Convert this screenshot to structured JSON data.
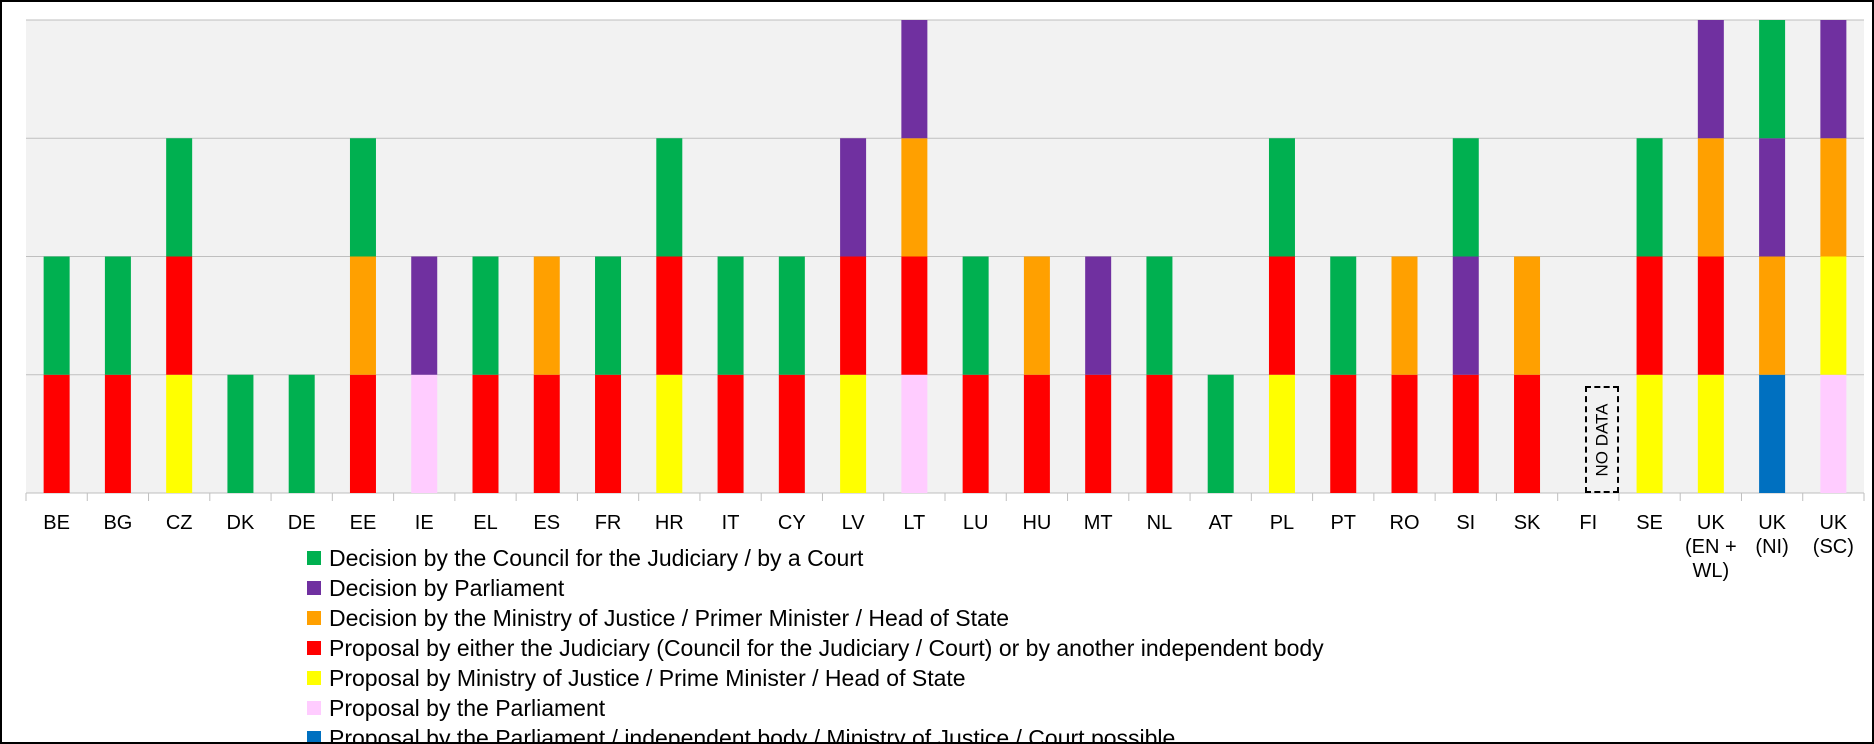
{
  "chart_data": {
    "type": "stacked_bar",
    "categories": [
      "BE",
      "BG",
      "CZ",
      "DK",
      "DE",
      "EE",
      "IE",
      "EL",
      "ES",
      "FR",
      "HR",
      "IT",
      "CY",
      "LV",
      "LT",
      "LU",
      "HU",
      "MT",
      "NL",
      "AT",
      "PL",
      "PT",
      "RO",
      "SI",
      "SK",
      "FI",
      "SE",
      "UK\n(EN +\nWL)",
      "UK\n(NI)",
      "UK\n(SC)"
    ],
    "series": [
      {
        "name": "Decision by the Council for the Judiciary / by a Court",
        "color": "#00b050",
        "values": [
          1,
          1,
          1,
          1,
          1,
          1,
          0,
          1,
          0,
          1,
          1,
          1,
          1,
          0,
          0,
          1,
          0,
          0,
          1,
          1,
          1,
          1,
          0,
          1,
          0,
          0,
          1,
          0,
          1,
          0
        ]
      },
      {
        "name": "Decision by Parliament",
        "color": "#7030a0",
        "values": [
          0,
          0,
          0,
          0,
          0,
          0,
          1,
          0,
          0,
          0,
          0,
          0,
          0,
          1,
          1,
          0,
          0,
          1,
          0,
          0,
          0,
          0,
          0,
          1,
          0,
          0,
          0,
          1,
          1,
          1
        ]
      },
      {
        "name": "Decision by the Ministry of Justice / Primer Minister / Head of State",
        "color": "#ffa000",
        "values": [
          0,
          0,
          0,
          0,
          0,
          1,
          0,
          0,
          1,
          0,
          0,
          0,
          0,
          0,
          1,
          0,
          1,
          0,
          0,
          0,
          0,
          0,
          1,
          0,
          1,
          0,
          0,
          1,
          1,
          1
        ]
      },
      {
        "name": "Proposal by either the Judiciary (Council for the Judiciary / Court) or by another independent body",
        "color": "#ff0000",
        "values": [
          1,
          1,
          1,
          0,
          0,
          1,
          0,
          1,
          1,
          1,
          1,
          1,
          1,
          1,
          1,
          1,
          1,
          1,
          1,
          0,
          1,
          1,
          1,
          1,
          1,
          0,
          1,
          1,
          0,
          0
        ]
      },
      {
        "name": "Proposal by Ministry of Justice / Prime Minister / Head of State",
        "color": "#ffff00",
        "values": [
          0,
          0,
          1,
          0,
          0,
          0,
          0,
          0,
          0,
          0,
          1,
          0,
          0,
          1,
          0,
          0,
          0,
          0,
          0,
          0,
          1,
          0,
          0,
          0,
          0,
          0,
          1,
          1,
          0,
          1
        ]
      },
      {
        "name": "Proposal by the Parliament",
        "color": "#ffccff",
        "values": [
          0,
          0,
          0,
          0,
          0,
          0,
          1,
          0,
          0,
          0,
          0,
          0,
          0,
          0,
          1,
          0,
          0,
          0,
          0,
          0,
          0,
          0,
          0,
          0,
          0,
          0,
          0,
          0,
          0,
          1
        ]
      },
      {
        "name": "Proposal by the Parliament / independent body / Ministry of Justice / Court possible",
        "color": "#0070c0",
        "values": [
          0,
          0,
          0,
          0,
          0,
          0,
          0,
          0,
          0,
          0,
          0,
          0,
          0,
          0,
          0,
          0,
          0,
          0,
          0,
          0,
          0,
          0,
          0,
          0,
          0,
          0,
          0,
          0,
          1,
          0
        ]
      }
    ],
    "ylim": [
      0,
      4
    ],
    "yticks": [
      0,
      1,
      2,
      3,
      4
    ],
    "grid": true,
    "annotations": [
      {
        "text": "NO DATA",
        "category": "FI"
      }
    ]
  }
}
